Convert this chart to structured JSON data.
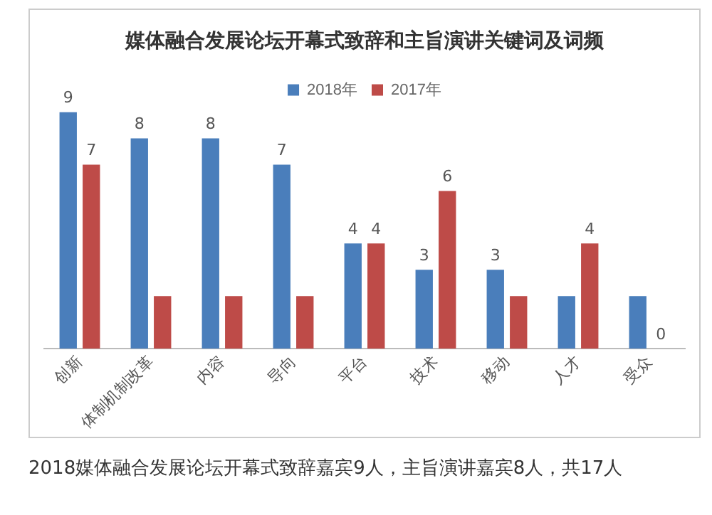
{
  "chart_data": {
    "type": "bar",
    "title": "媒体融合发展论坛开幕式致辞和主旨演讲关键词及词频",
    "categories": [
      "创新",
      "体制机制改革",
      "内容",
      "导向",
      "平台",
      "技术",
      "移动",
      "人才",
      "受众"
    ],
    "series": [
      {
        "name": "2018年",
        "color": "#4a7ebb",
        "values": [
          9,
          8,
          8,
          7,
          4,
          3,
          3,
          2,
          2
        ],
        "value_labels": [
          "9",
          "8",
          "8",
          "7",
          "4",
          "3",
          "3",
          null,
          null
        ]
      },
      {
        "name": "2017年",
        "color": "#be4b48",
        "values": [
          7,
          2,
          2,
          2,
          4,
          6,
          2,
          4,
          0
        ],
        "value_labels": [
          "7",
          null,
          null,
          null,
          "4",
          "6",
          null,
          "4",
          "0"
        ]
      }
    ],
    "legend": "top",
    "grid": false,
    "tick_labels": "x",
    "annotations": [
      "2018媒体融合发展论坛开幕式致辞嘉宾9人，主旨演讲嘉宾8人，共17人"
    ]
  }
}
